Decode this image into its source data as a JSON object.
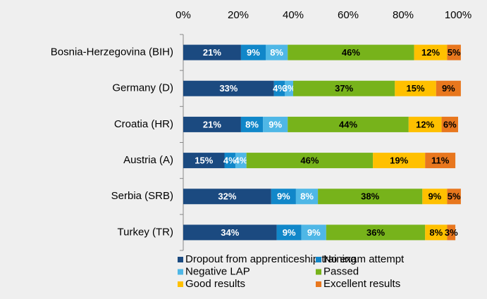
{
  "chart_data": {
    "type": "stacked-bar-horizontal",
    "categories": [
      "Bosnia-Herzegovina (BIH)",
      "Germany (D)",
      "Croatia (HR)",
      "Austria (A)",
      "Serbia (SRB)",
      "Turkey (TR)"
    ],
    "series": [
      {
        "name": "Dropout from apprenticeship training",
        "color": "#1b4a80",
        "values": [
          21,
          33,
          21,
          15,
          32,
          34
        ],
        "value_labels": [
          "21%",
          "33%",
          "21%",
          "15%",
          "32%",
          "34%"
        ]
      },
      {
        "name": "No exam attempt",
        "color": "#1187c9",
        "values": [
          9,
          4,
          8,
          4,
          9,
          9
        ],
        "value_labels": [
          "9%",
          "4%",
          "8%",
          "4%",
          "9%",
          "9%"
        ]
      },
      {
        "name": "Negative LAP",
        "color": "#4fb7e6",
        "values": [
          8,
          3,
          9,
          4,
          8,
          9
        ],
        "value_labels": [
          "8%",
          "3%",
          "9%",
          "4%",
          "8%",
          "9%"
        ]
      },
      {
        "name": "Passed",
        "color": "#77b31b",
        "values": [
          46,
          37,
          44,
          46,
          38,
          36
        ],
        "value_labels": [
          "46%",
          "37%",
          "44%",
          "46%",
          "38%",
          "36%"
        ]
      },
      {
        "name": "Good results",
        "color": "#ffc000",
        "values": [
          12,
          15,
          12,
          19,
          9,
          8
        ],
        "value_labels": [
          "12%",
          "15%",
          "12%",
          "19%",
          "9%",
          "8%"
        ]
      },
      {
        "name": "Excellent results",
        "color": "#e8771e",
        "values": [
          5,
          9,
          6,
          11,
          5,
          3
        ],
        "value_labels": [
          "5%",
          "9%",
          "6%",
          "11%",
          "5%",
          "3%"
        ]
      }
    ],
    "xlim": [
      0,
      100
    ],
    "xticks": [
      {
        "value": 0,
        "label": "0%"
      },
      {
        "value": 20,
        "label": "20%"
      },
      {
        "value": 40,
        "label": "40%"
      },
      {
        "value": 60,
        "label": "60%"
      },
      {
        "value": 80,
        "label": "80%"
      },
      {
        "value": 100,
        "label": "100%"
      }
    ]
  }
}
